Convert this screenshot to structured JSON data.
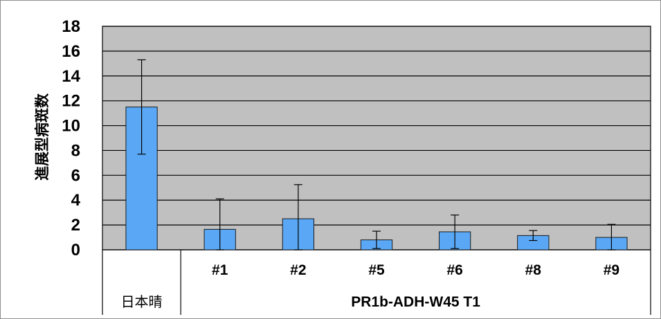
{
  "chart_data": {
    "type": "bar",
    "title": "",
    "ylabel": "進展型病斑数",
    "xlabel": "",
    "ylim": [
      0,
      18
    ],
    "yticks": [
      "0",
      "2",
      "4",
      "6",
      "8",
      "10",
      "12",
      "14",
      "16",
      "18"
    ],
    "grid": true,
    "categories": [
      "",
      "#1",
      "#2",
      "#5",
      "#6",
      "#8",
      "#9"
    ],
    "values": [
      11.5,
      1.65,
      2.5,
      0.8,
      1.45,
      1.15,
      1.0
    ],
    "errors": [
      3.8,
      2.45,
      2.75,
      0.7,
      1.35,
      0.4,
      1.05
    ],
    "groups": [
      {
        "label": "日本晴",
        "span": 1
      },
      {
        "label": "PR1b-ADH-W45 T1",
        "span": 6
      }
    ],
    "colors": {
      "bar": "#5aa8f5",
      "plot_bg": "#c0c0c0"
    }
  }
}
